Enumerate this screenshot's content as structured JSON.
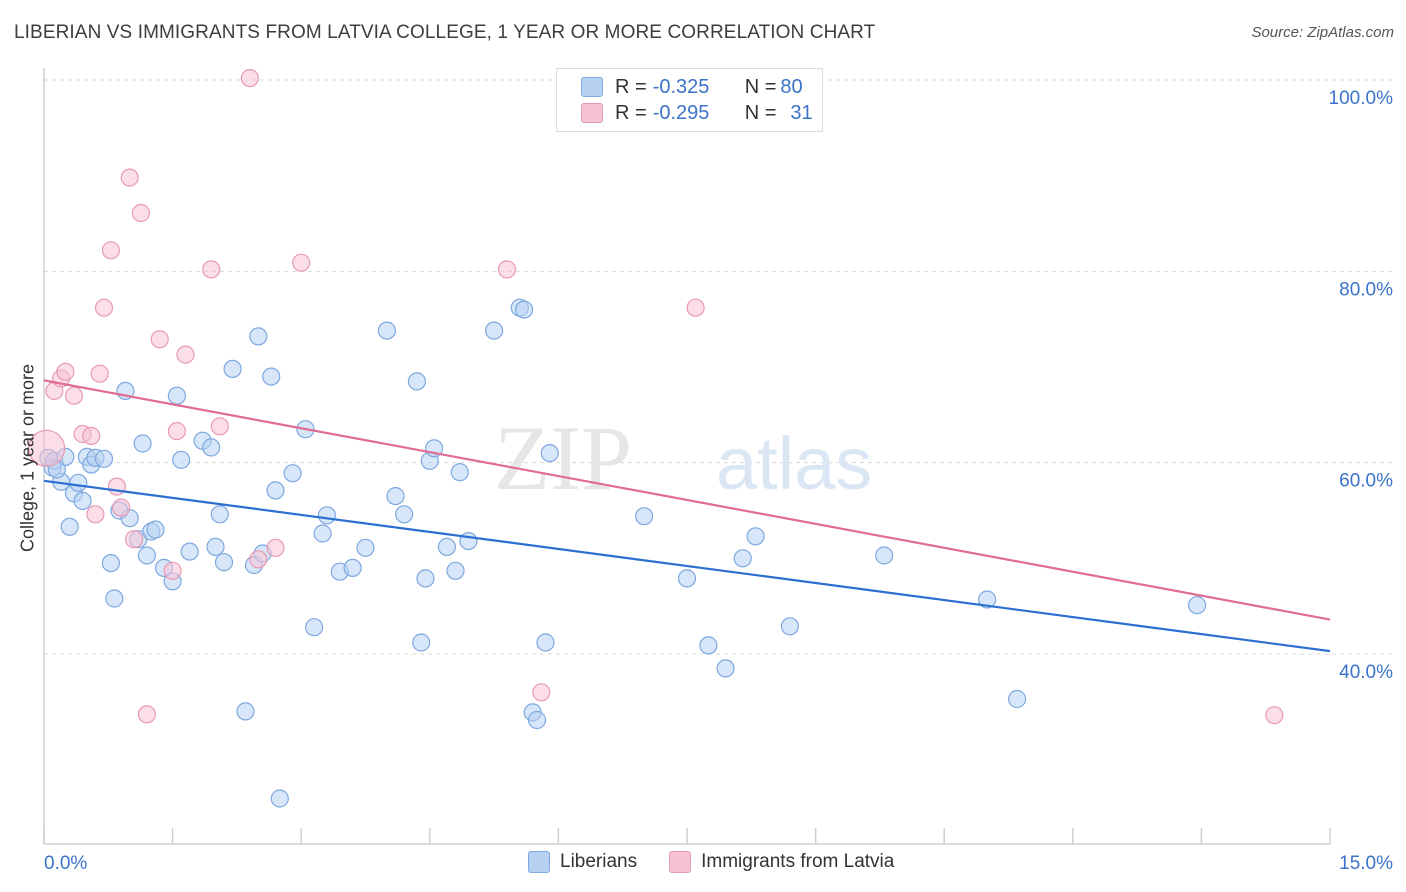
{
  "header": {
    "title": "LIBERIAN VS IMMIGRANTS FROM LATVIA COLLEGE, 1 YEAR OR MORE CORRELATION CHART",
    "source": "Source: ZipAtlas.com"
  },
  "watermark": {
    "zip": "ZIP",
    "atlas": "atlas"
  },
  "legend_top": {
    "rows": [
      {
        "r_label": "R = ",
        "r_value": "-0.325",
        "n_label": "N = ",
        "n_value": "80"
      },
      {
        "r_label": "R = ",
        "r_value": "-0.295",
        "n_label": "N = ",
        "n_value": "31"
      }
    ]
  },
  "legend_bottom": {
    "items": [
      {
        "label": "Liberians"
      },
      {
        "label": "Immigrants from Latvia"
      }
    ]
  },
  "colors": {
    "blue_fill": "#b7d1f3",
    "blue_stroke": "#7ea8e0",
    "blue_line": "#2d6fd1",
    "pink_fill": "#f7c3d3",
    "pink_stroke": "#e89ab2",
    "pink_line": "#e06b93",
    "axis_text": "#3b73c9",
    "grid": "#d8d8d8"
  },
  "chart_data": {
    "type": "scatter",
    "title": "LIBERIAN VS IMMIGRANTS FROM LATVIA COLLEGE, 1 YEAR OR MORE CORRELATION CHART",
    "xlabel": "",
    "ylabel": "College, 1 year or more",
    "xlim": [
      0,
      15
    ],
    "ylim": [
      22,
      102
    ],
    "x_tick_labels": [
      "0.0%",
      "15.0%"
    ],
    "y_tick_labels": [
      "40.0%",
      "60.0%",
      "80.0%",
      "100.0%"
    ],
    "y_ticks": [
      40,
      60,
      80,
      100
    ],
    "grid": true,
    "series": [
      {
        "name": "Liberians",
        "R": -0.325,
        "N": 80,
        "trend": {
          "x": [
            0,
            15
          ],
          "y": [
            58.1,
            40.3
          ]
        },
        "points": [
          [
            0.05,
            60.5
          ],
          [
            0.1,
            59.5
          ],
          [
            0.12,
            60.2
          ],
          [
            0.2,
            58.0
          ],
          [
            0.25,
            60.6
          ],
          [
            0.3,
            53.3
          ],
          [
            0.35,
            56.8
          ],
          [
            0.4,
            57.9
          ],
          [
            0.45,
            56.0
          ],
          [
            0.5,
            60.6
          ],
          [
            0.55,
            59.8
          ],
          [
            0.6,
            60.5
          ],
          [
            0.7,
            60.4
          ],
          [
            0.78,
            49.5
          ],
          [
            0.82,
            45.8
          ],
          [
            0.88,
            55.0
          ],
          [
            0.95,
            67.5
          ],
          [
            1.0,
            54.2
          ],
          [
            1.1,
            52.0
          ],
          [
            1.15,
            62.0
          ],
          [
            1.2,
            50.3
          ],
          [
            1.25,
            52.8
          ],
          [
            1.3,
            53.0
          ],
          [
            1.4,
            49.0
          ],
          [
            1.5,
            47.6
          ],
          [
            1.55,
            67.0
          ],
          [
            1.6,
            60.3
          ],
          [
            1.7,
            50.7
          ],
          [
            1.85,
            62.3
          ],
          [
            1.95,
            61.6
          ],
          [
            2.0,
            51.2
          ],
          [
            2.05,
            54.6
          ],
          [
            2.1,
            49.6
          ],
          [
            2.2,
            69.8
          ],
          [
            2.35,
            34.0
          ],
          [
            2.45,
            49.3
          ],
          [
            2.5,
            73.2
          ],
          [
            2.55,
            50.5
          ],
          [
            2.65,
            69.0
          ],
          [
            2.7,
            57.1
          ],
          [
            2.75,
            24.9
          ],
          [
            2.9,
            58.9
          ],
          [
            3.05,
            63.5
          ],
          [
            3.15,
            42.8
          ],
          [
            3.25,
            52.6
          ],
          [
            3.3,
            54.5
          ],
          [
            3.45,
            48.6
          ],
          [
            3.6,
            49.0
          ],
          [
            3.75,
            51.1
          ],
          [
            4.0,
            73.8
          ],
          [
            4.1,
            56.5
          ],
          [
            4.2,
            54.6
          ],
          [
            4.35,
            68.5
          ],
          [
            4.4,
            41.2
          ],
          [
            4.45,
            47.9
          ],
          [
            4.5,
            60.2
          ],
          [
            4.55,
            61.5
          ],
          [
            4.7,
            51.2
          ],
          [
            4.8,
            48.7
          ],
          [
            4.85,
            59.0
          ],
          [
            4.95,
            51.8
          ],
          [
            5.25,
            73.8
          ],
          [
            5.55,
            76.2
          ],
          [
            5.6,
            76.0
          ],
          [
            5.7,
            33.9
          ],
          [
            5.75,
            33.1
          ],
          [
            5.85,
            41.2
          ],
          [
            5.9,
            61.0
          ],
          [
            7.0,
            54.4
          ],
          [
            7.5,
            47.9
          ],
          [
            7.75,
            40.9
          ],
          [
            7.95,
            38.5
          ],
          [
            8.15,
            50.0
          ],
          [
            8.3,
            52.3
          ],
          [
            8.7,
            42.9
          ],
          [
            9.8,
            50.3
          ],
          [
            11.0,
            45.7
          ],
          [
            11.35,
            35.3
          ],
          [
            13.45,
            45.1
          ],
          [
            0.15,
            59.3
          ]
        ]
      },
      {
        "name": "Immigrants from Latvia",
        "R": -0.295,
        "N": 31,
        "trend": {
          "x": [
            0,
            15
          ],
          "y": [
            68.6,
            43.6
          ]
        },
        "points": [
          [
            0.03,
            61.5
          ],
          [
            0.12,
            67.5
          ],
          [
            0.2,
            68.8
          ],
          [
            0.25,
            69.5
          ],
          [
            0.35,
            67.0
          ],
          [
            0.45,
            63.0
          ],
          [
            0.55,
            62.8
          ],
          [
            0.6,
            54.6
          ],
          [
            0.65,
            69.3
          ],
          [
            0.7,
            76.2
          ],
          [
            0.78,
            82.2
          ],
          [
            0.85,
            57.5
          ],
          [
            0.9,
            55.3
          ],
          [
            1.0,
            89.8
          ],
          [
            1.05,
            52.0
          ],
          [
            1.13,
            86.1
          ],
          [
            1.2,
            33.7
          ],
          [
            1.35,
            72.9
          ],
          [
            1.5,
            48.7
          ],
          [
            1.55,
            63.3
          ],
          [
            1.65,
            71.3
          ],
          [
            1.95,
            80.2
          ],
          [
            2.05,
            63.8
          ],
          [
            2.4,
            100.2
          ],
          [
            2.5,
            49.9
          ],
          [
            2.7,
            51.1
          ],
          [
            3.0,
            80.9
          ],
          [
            5.4,
            80.2
          ],
          [
            5.8,
            36.0
          ],
          [
            7.6,
            76.2
          ],
          [
            14.35,
            33.6
          ]
        ]
      }
    ]
  }
}
